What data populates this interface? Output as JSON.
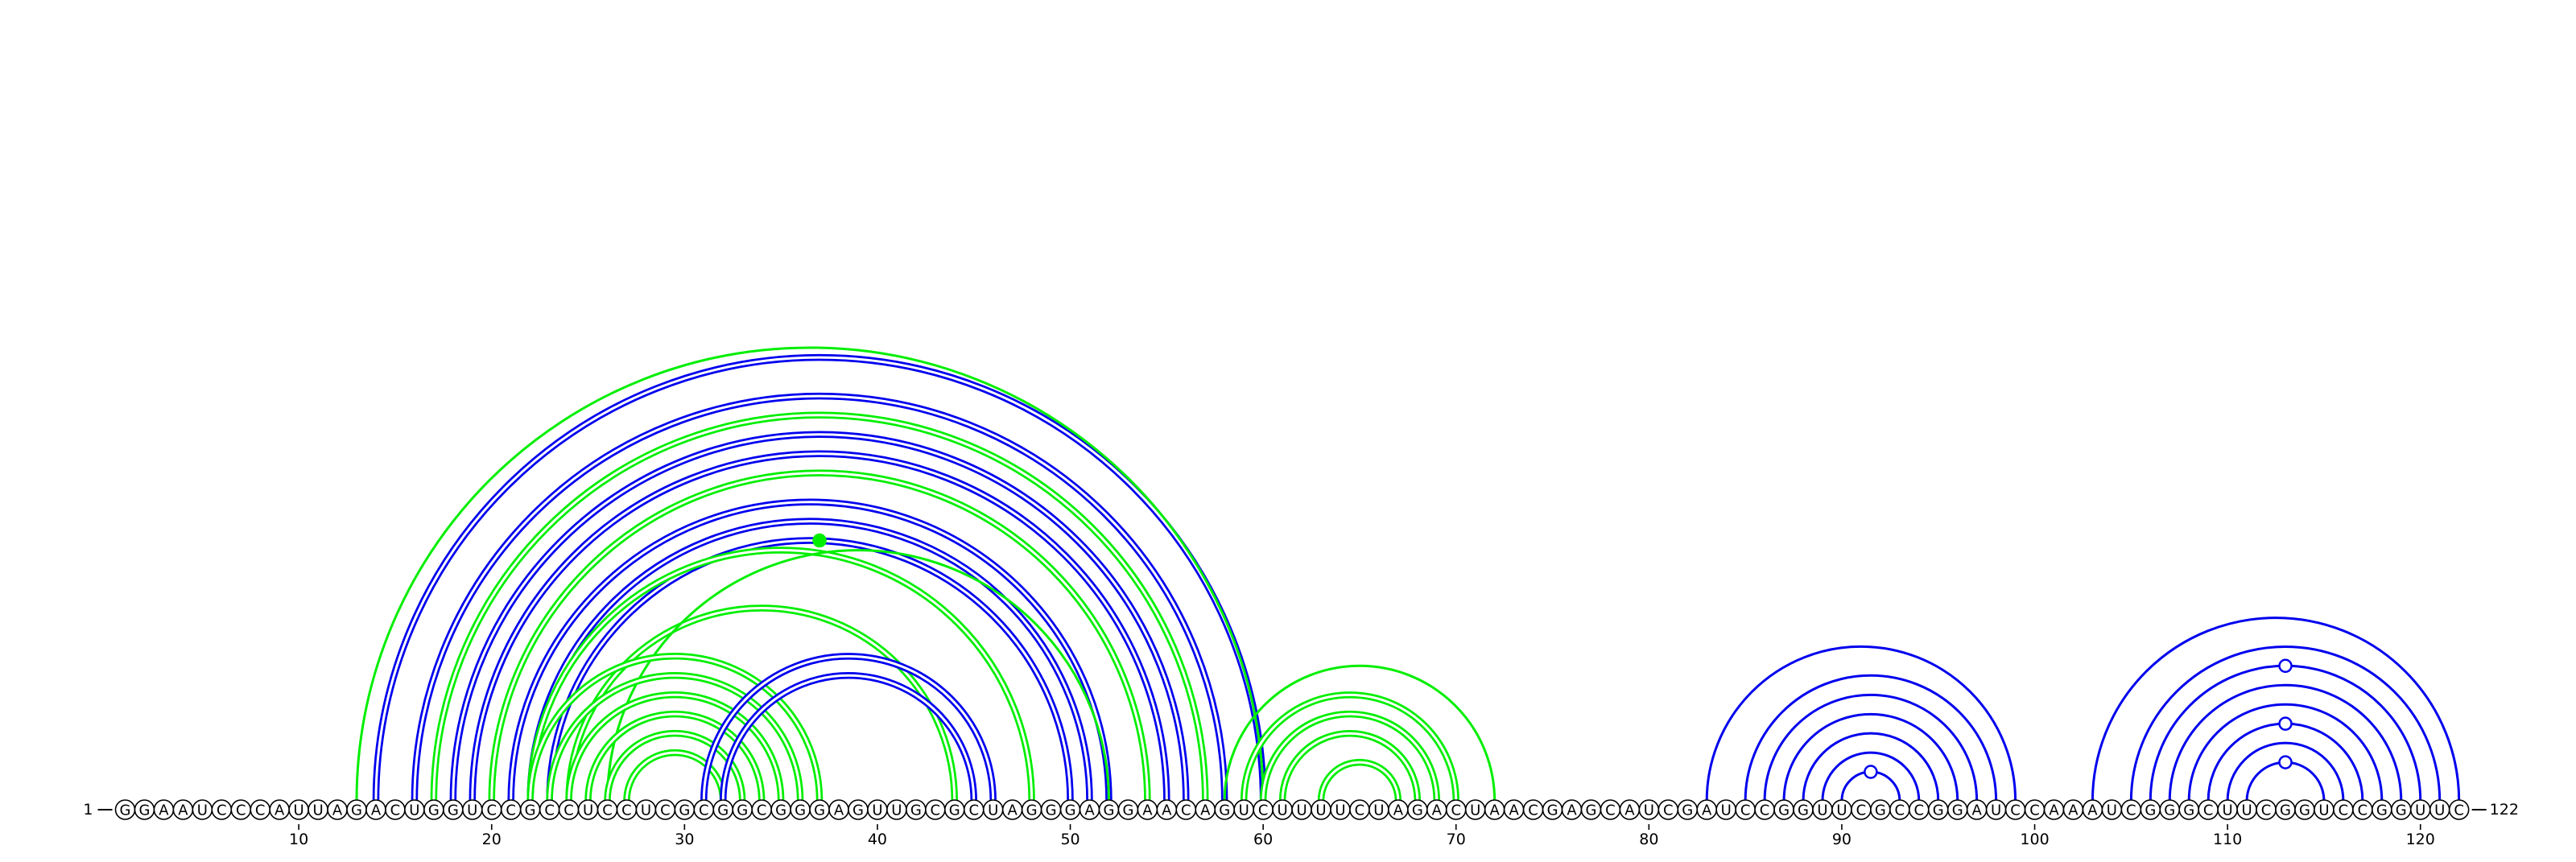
{
  "sequence": "GGAAUCCCAUUAGACUGGUCCGCCUCCUCGCGGCGGGAGUUGCGCUAGGGAGGAACAGUCUUUUCUAGACUAACGAGCAUCGAUCCGGUUCGCCGGAUCCAAAUCGGGCUUCGGUCCGGUUC",
  "start_label": "1",
  "end_label": "122",
  "tick_labels": [
    "10",
    "20",
    "30",
    "40",
    "50",
    "60",
    "70",
    "80",
    "90",
    "100",
    "110",
    "120"
  ],
  "colors": {
    "blue_arc": "#0000ee",
    "green_arc": "#00ee00",
    "nucleotide_fill": "#ffffff",
    "text": "#000000"
  },
  "arc_groups": [
    {
      "color": "blue",
      "style": "double",
      "pairs": [
        [
          14,
          60
        ],
        [
          16,
          58
        ],
        [
          18,
          56
        ],
        [
          19,
          55
        ],
        [
          21,
          52
        ],
        [
          22,
          51
        ],
        [
          23,
          50
        ]
      ]
    },
    {
      "color": "green",
      "style": "double",
      "pairs": [
        [
          17,
          57
        ],
        [
          20,
          54
        ],
        [
          22,
          48
        ],
        [
          24,
          44
        ]
      ]
    },
    {
      "color": "green",
      "style": "single",
      "pairs": [
        [
          13,
          60
        ],
        [
          26,
          52
        ]
      ]
    },
    {
      "color": "green",
      "style": "double",
      "pairs": [
        [
          22,
          37
        ],
        [
          23,
          36
        ],
        [
          24,
          35
        ],
        [
          25,
          34
        ],
        [
          26,
          33
        ],
        [
          27,
          32
        ]
      ]
    },
    {
      "color": "blue",
      "style": "double",
      "pairs": [
        [
          31,
          46
        ],
        [
          32,
          45
        ]
      ]
    },
    {
      "color": "green",
      "style": "double",
      "pairs": [
        [
          59,
          70
        ],
        [
          60,
          69
        ],
        [
          61,
          68
        ],
        [
          63,
          67
        ]
      ]
    },
    {
      "color": "green",
      "style": "single",
      "pairs": [
        [
          58,
          72
        ]
      ]
    },
    {
      "color": "blue",
      "style": "single",
      "pairs": [
        [
          83,
          99
        ],
        [
          85,
          98
        ],
        [
          86,
          97
        ],
        [
          87,
          96
        ],
        [
          88,
          95
        ],
        [
          89,
          94
        ],
        [
          90,
          93
        ]
      ]
    },
    {
      "color": "blue",
      "style": "single",
      "pairs": [
        [
          103,
          122
        ],
        [
          105,
          121
        ],
        [
          106,
          120
        ],
        [
          107,
          119
        ],
        [
          108,
          118
        ],
        [
          109,
          117
        ],
        [
          110,
          116
        ],
        [
          111,
          115
        ]
      ]
    }
  ],
  "markers": [
    {
      "color": "green",
      "filled": true,
      "pos": 37,
      "on_pair": [
        23,
        50
      ]
    },
    {
      "color": "blue",
      "filled": false,
      "pos": 91.5,
      "on_pair": [
        90,
        93
      ]
    },
    {
      "color": "blue",
      "filled": false,
      "pos": 113,
      "on_pair": [
        106,
        120
      ]
    },
    {
      "color": "blue",
      "filled": false,
      "pos": 113,
      "on_pair": [
        109,
        117
      ]
    },
    {
      "color": "blue",
      "filled": false,
      "pos": 113,
      "on_pair": [
        111,
        115
      ]
    }
  ]
}
